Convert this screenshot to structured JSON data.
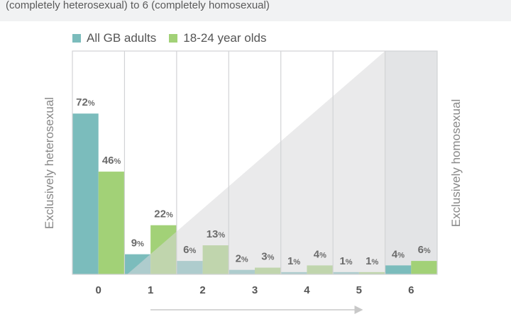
{
  "header": {
    "subtitle": "(completely heterosexual) to 6 (completely homosexual)"
  },
  "chart_data": {
    "type": "bar",
    "categories": [
      "0",
      "1",
      "2",
      "3",
      "4",
      "5",
      "6"
    ],
    "series": [
      {
        "name": "All GB adults",
        "values": [
          72,
          9,
          6,
          2,
          1,
          1,
          4
        ],
        "color": "#7bbcbc"
      },
      {
        "name": "18-24 year olds",
        "values": [
          46,
          22,
          13,
          3,
          4,
          1,
          6
        ],
        "color": "#a2d177"
      }
    ],
    "value_suffix": "%",
    "ylim": [
      0,
      80
    ],
    "left_axis_label": "Exclusively heterosexual",
    "right_axis_label": "Exclusively homosexual",
    "legend_position": "top-left",
    "grid": false,
    "annotations": [
      "diagonal shaded region from bottom-left to top-right",
      "arrow along x axis pointing right"
    ],
    "colors": {
      "shading": "#e3e4e6",
      "frame": "#d2d3d5",
      "arrow": "#c8c8c8"
    }
  }
}
